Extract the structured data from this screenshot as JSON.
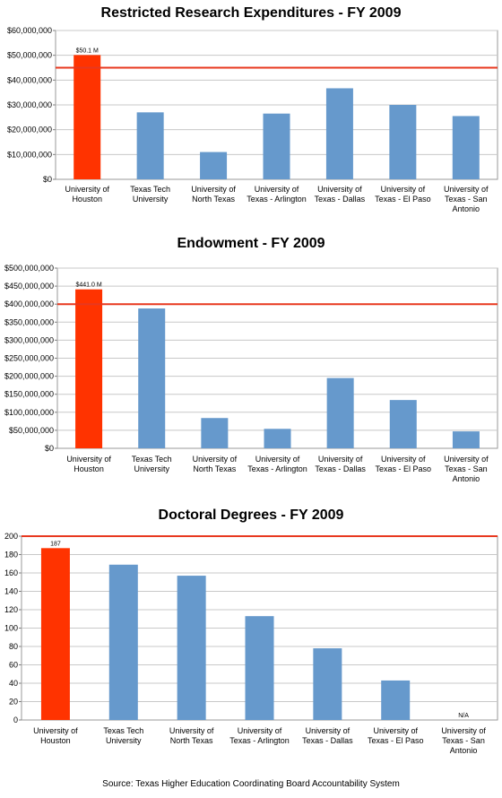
{
  "colors": {
    "highlight": "#ff3300",
    "bar": "#6699cc",
    "reference": "#e8381f",
    "grid": "#c8c8c8"
  },
  "chart_data": [
    {
      "type": "bar",
      "title": "Restricted Research Expenditures - FY 2009",
      "categories": [
        [
          "University of",
          "Houston"
        ],
        [
          "Texas Tech",
          "University"
        ],
        [
          "University of",
          "North Texas"
        ],
        [
          "University of",
          "Texas - Arlington"
        ],
        [
          "University of",
          "Texas - Dallas"
        ],
        [
          "University of",
          "Texas - El Paso"
        ],
        [
          "University of",
          "Texas - San",
          "Antonio"
        ]
      ],
      "values": [
        50100000,
        27000000,
        11000000,
        26500000,
        36700000,
        30000000,
        25500000
      ],
      "ylim": [
        0,
        60000000
      ],
      "yticks": [
        0,
        10000000,
        20000000,
        30000000,
        40000000,
        50000000,
        60000000
      ],
      "ytick_labels": [
        "$0",
        "$10,000,000",
        "$20,000,000",
        "$30,000,000",
        "$40,000,000",
        "$50,000,000",
        "$60,000,000"
      ],
      "reference_line": 45000000,
      "highlight_index": 0,
      "data_labels": [
        "$50.1 M",
        "",
        "",
        "",
        "",
        "",
        ""
      ],
      "grid": true
    },
    {
      "type": "bar",
      "title": "Endowment - FY 2009",
      "categories": [
        [
          "University of",
          "Houston"
        ],
        [
          "Texas Tech",
          "University"
        ],
        [
          "University of",
          "North Texas"
        ],
        [
          "University of",
          "Texas - Arlington"
        ],
        [
          "University of",
          "Texas - Dallas"
        ],
        [
          "University of",
          "Texas - El Paso"
        ],
        [
          "University of",
          "Texas - San",
          "Antonio"
        ]
      ],
      "values": [
        441000000,
        388000000,
        84000000,
        54000000,
        195000000,
        134000000,
        47000000
      ],
      "ylim": [
        0,
        500000000
      ],
      "yticks": [
        0,
        50000000,
        100000000,
        150000000,
        200000000,
        250000000,
        300000000,
        350000000,
        400000000,
        450000000,
        500000000
      ],
      "ytick_labels": [
        "$0",
        "$50,000,000",
        "$100,000,000",
        "$150,000,000",
        "$200,000,000",
        "$250,000,000",
        "$300,000,000",
        "$350,000,000",
        "$400,000,000",
        "$450,000,000",
        "$500,000,000"
      ],
      "reference_line": 400000000,
      "highlight_index": 0,
      "data_labels": [
        "$441.0 M",
        "",
        "",
        "",
        "",
        "",
        ""
      ],
      "grid": true
    },
    {
      "type": "bar",
      "title": "Doctoral Degrees - FY 2009",
      "categories": [
        [
          "University of",
          "Houston"
        ],
        [
          "Texas Tech",
          "University"
        ],
        [
          "University of",
          "North Texas"
        ],
        [
          "University of",
          "Texas - Arlington"
        ],
        [
          "University of",
          "Texas - Dallas"
        ],
        [
          "University of",
          "Texas - El Paso"
        ],
        [
          "University of",
          "Texas - San",
          "Antonio"
        ]
      ],
      "values": [
        187,
        169,
        157,
        113,
        78,
        43,
        0
      ],
      "ylim": [
        0,
        200
      ],
      "yticks": [
        0,
        20,
        40,
        60,
        80,
        100,
        120,
        140,
        160,
        180,
        200
      ],
      "ytick_labels": [
        "0",
        "20",
        "40",
        "60",
        "80",
        "100",
        "120",
        "140",
        "160",
        "180",
        "200"
      ],
      "reference_line": 200,
      "highlight_index": 0,
      "data_labels": [
        "187",
        "",
        "",
        "",
        "",
        "",
        "N/A"
      ],
      "grid": true
    }
  ],
  "source": "Source:  Texas Higher Education Coordinating Board Accountability System"
}
